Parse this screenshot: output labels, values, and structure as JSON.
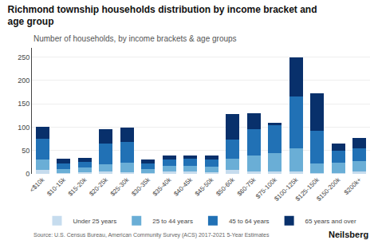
{
  "chart_data": {
    "type": "bar",
    "title": "Richmond township households distribution by income bracket and\nage group",
    "subtitle": "Number of households, by income brackets & age groups",
    "source": "Source: U.S. Census Bureau, American Community Survey (ACS) 2017-2021 5-Year Estimates",
    "annotations": [
      "Neilsberg"
    ],
    "categories": [
      "<$10k",
      "$10-15k",
      "$15-20k",
      "$20-25k",
      "$25-30k",
      "$30-35k",
      "$35-40k",
      "$40-45k",
      "$45-50k",
      "$50-60k",
      "$60-75k",
      "$75-100k",
      "$100-125k",
      "$125-150k",
      "$150-200k",
      "$200k+"
    ],
    "series": [
      {
        "name": "Under 25 years",
        "color": "#c6dcee",
        "values": [
          8,
          2,
          3,
          5,
          4,
          2,
          5,
          5,
          3,
          8,
          5,
          5,
          5,
          2,
          2,
          5
        ]
      },
      {
        "name": "25 to 44 years",
        "color": "#6aaed6",
        "values": [
          22,
          8,
          10,
          15,
          20,
          8,
          12,
          12,
          12,
          25,
          35,
          40,
          50,
          20,
          22,
          22
        ]
      },
      {
        "name": "45 to 64 years",
        "color": "#2171b5",
        "values": [
          45,
          12,
          12,
          45,
          45,
          12,
          14,
          15,
          15,
          40,
          55,
          60,
          110,
          70,
          25,
          28
        ]
      },
      {
        "name": "65 years and over",
        "color": "#08306b",
        "values": [
          25,
          10,
          10,
          30,
          30,
          8,
          9,
          8,
          9,
          55,
          35,
          5,
          85,
          80,
          16,
          22
        ]
      }
    ],
    "stacked": true,
    "ylim": [
      0,
      270
    ],
    "yticks": [
      0,
      50,
      100,
      150,
      200,
      250
    ],
    "grid": true,
    "legend": "lower center"
  }
}
